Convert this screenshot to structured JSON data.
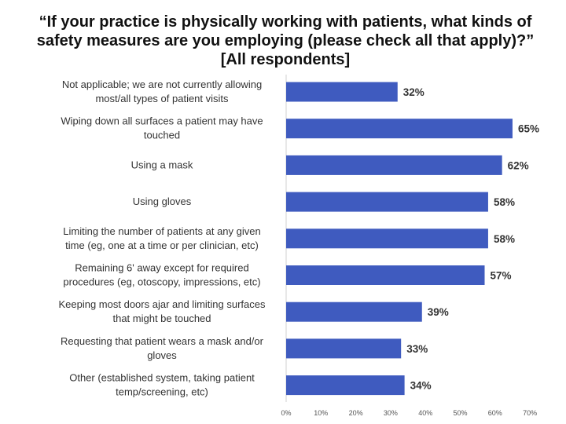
{
  "title": "“If your practice is physically working with patients, what kinds of safety measures are you employing (please check all that apply)?” [All respondents]",
  "chart_data": {
    "type": "bar",
    "orientation": "horizontal",
    "title": "“If your practice is physically working with patients, what kinds of safety measures are you employing (please check all that apply)?” [All respondents]",
    "categories": [
      [
        "Not applicable; we are not currently allowing",
        "most/all types of patient visits"
      ],
      [
        "Wiping down all surfaces a patient may have",
        "touched"
      ],
      [
        "Using a mask"
      ],
      [
        "Using gloves"
      ],
      [
        "Limiting the number of patients at any given",
        "time (eg, one at a time or per clinician, etc)"
      ],
      [
        "Remaining 6' away except for required",
        "procedures (eg, otoscopy, impressions, etc)"
      ],
      [
        "Keeping most doors ajar and limiting surfaces",
        "that might be touched"
      ],
      [
        "Requesting that patient wears a mask and/or",
        "gloves"
      ],
      [
        "Other (established system, taking patient",
        "temp/screening, etc)"
      ]
    ],
    "values": [
      32,
      65,
      62,
      58,
      58,
      57,
      39,
      33,
      34
    ],
    "value_labels": [
      "32%",
      "65%",
      "62%",
      "58%",
      "58%",
      "57%",
      "39%",
      "33%",
      "34%"
    ],
    "xlim": [
      0,
      70
    ],
    "xticks": [
      "0%",
      "10%",
      "20%",
      "30%",
      "40%",
      "50%",
      "60%",
      "70%"
    ],
    "bar_color": "#3F5BBF",
    "grid": false,
    "legend": "none"
  }
}
